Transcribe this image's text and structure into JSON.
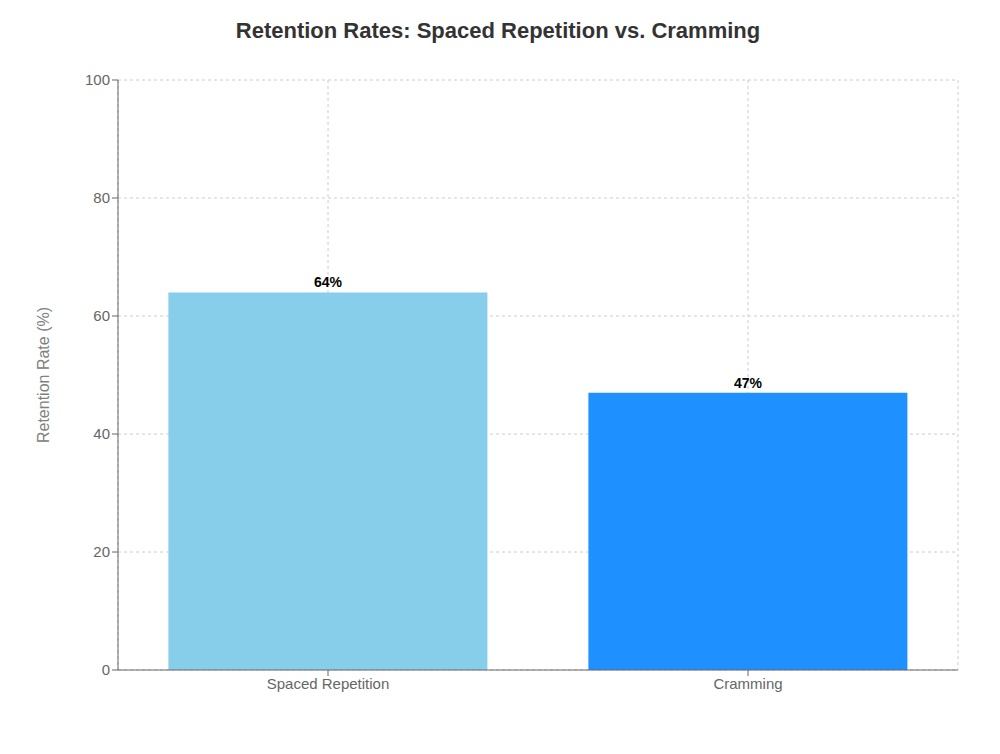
{
  "chart_data": {
    "type": "bar",
    "title": "Retention Rates: Spaced Repetition vs. Cramming",
    "ylabel": "Retention Rate (%)",
    "categories": [
      "Spaced Repetition",
      "Cramming"
    ],
    "values": [
      64,
      47
    ],
    "value_labels": [
      "64%",
      "47%"
    ],
    "colors": [
      "#87CEEB",
      "#1E90FF"
    ],
    "ylim": [
      0,
      100
    ],
    "yticks": [
      0,
      20,
      40,
      60,
      80,
      100
    ],
    "grid": true,
    "data_labels": true
  }
}
